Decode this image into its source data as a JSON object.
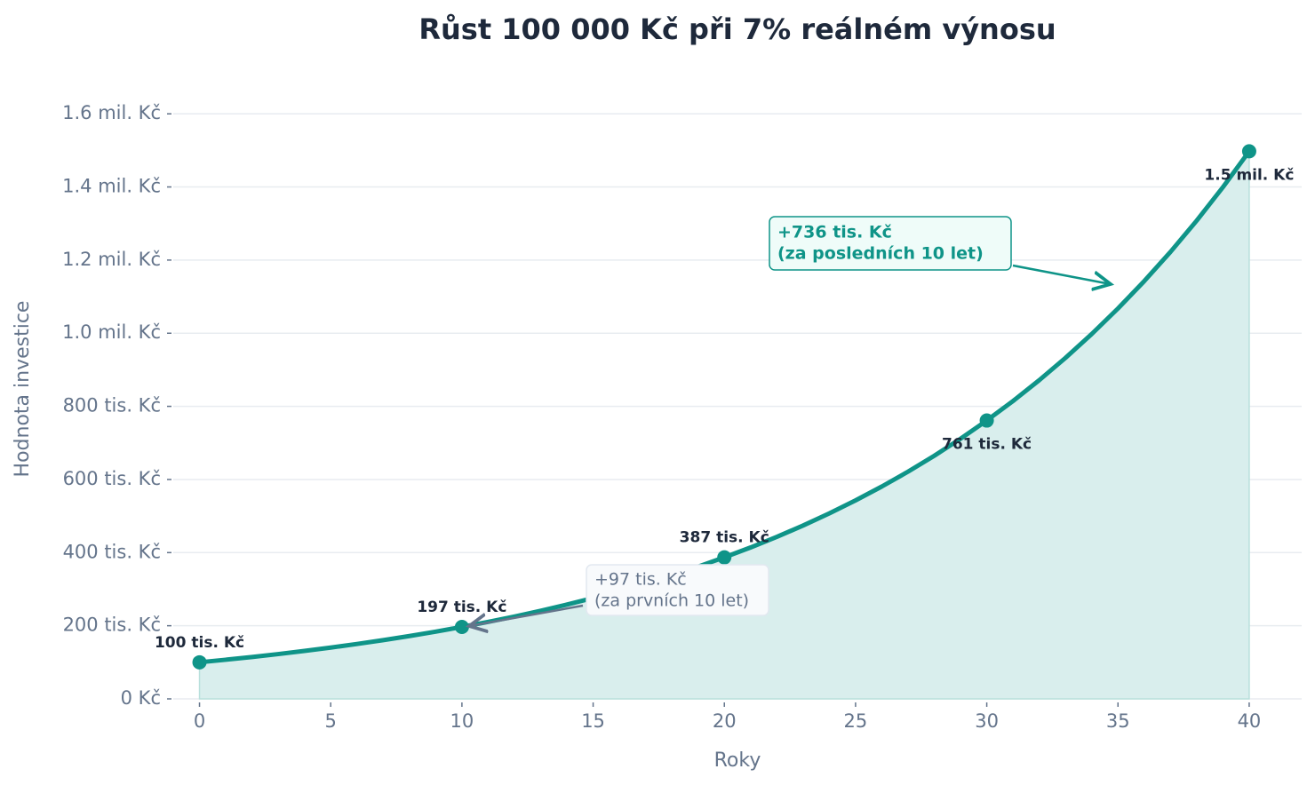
{
  "chart_data": {
    "type": "line",
    "title": "Růst 100 000 Kč při 7% reálném výnosu",
    "x_label": "Roky",
    "y_label": "Hodnota investice",
    "x": [
      0,
      1,
      2,
      3,
      4,
      5,
      6,
      7,
      8,
      9,
      10,
      11,
      12,
      13,
      14,
      15,
      16,
      17,
      18,
      19,
      20,
      21,
      22,
      23,
      24,
      25,
      26,
      27,
      28,
      29,
      30,
      31,
      32,
      33,
      34,
      35,
      36,
      37,
      38,
      39,
      40
    ],
    "series": [
      {
        "color": "#0f9488",
        "fill": "#d9eeed",
        "values": [
          100000,
          107000,
          114490,
          122504,
          131080,
          140255,
          150073,
          160578,
          171819,
          183846,
          196715,
          210485,
          225219,
          240985,
          257853,
          275903,
          295216,
          315882,
          337993,
          361653,
          386968,
          414056,
          443040,
          474053,
          507237,
          542743,
          580735,
          621387,
          664884,
          711426,
          761226,
          814511,
          871527,
          932534,
          997811,
          1067658,
          1142394,
          1222362,
          1307927,
          1399482,
          1497446
        ]
      }
    ],
    "markers": {
      "color": "#0f9488",
      "x": [
        0,
        10,
        20,
        30,
        40
      ],
      "values": [
        100000,
        196715,
        386968,
        761226,
        1497446
      ],
      "value_labels": [
        "100 tis. Kč",
        "197 tis. Kč",
        "387 tis. Kč",
        "761 tis. Kč",
        "1.5 mil. Kč"
      ]
    },
    "annotations": [
      {
        "lines": [
          "+97 tis. Kč",
          "(za prvních 10 let)"
        ],
        "color": "#64748b"
      },
      {
        "lines": [
          "+736 tis. Kč",
          "(za posledních 10 let)"
        ],
        "color": "#0f9488"
      }
    ],
    "xlim": [
      -1,
      42
    ],
    "ylim": [
      0,
      1700000
    ],
    "xticks": [
      0,
      5,
      10,
      15,
      20,
      25,
      30,
      35,
      40
    ],
    "yticks": [
      {
        "value": 0,
        "label": "0 Kč"
      },
      {
        "value": 200000,
        "label": "200 tis. Kč"
      },
      {
        "value": 400000,
        "label": "400 tis. Kč"
      },
      {
        "value": 600000,
        "label": "600 tis. Kč"
      },
      {
        "value": 800000,
        "label": "800 tis. Kč"
      },
      {
        "value": 1000000,
        "label": "1.0 mil. Kč"
      },
      {
        "value": 1200000,
        "label": "1.2 mil. Kč"
      },
      {
        "value": 1400000,
        "label": "1.4 mil. Kč"
      },
      {
        "value": 1600000,
        "label": "1.6 mil. Kč"
      }
    ],
    "grid": true
  }
}
